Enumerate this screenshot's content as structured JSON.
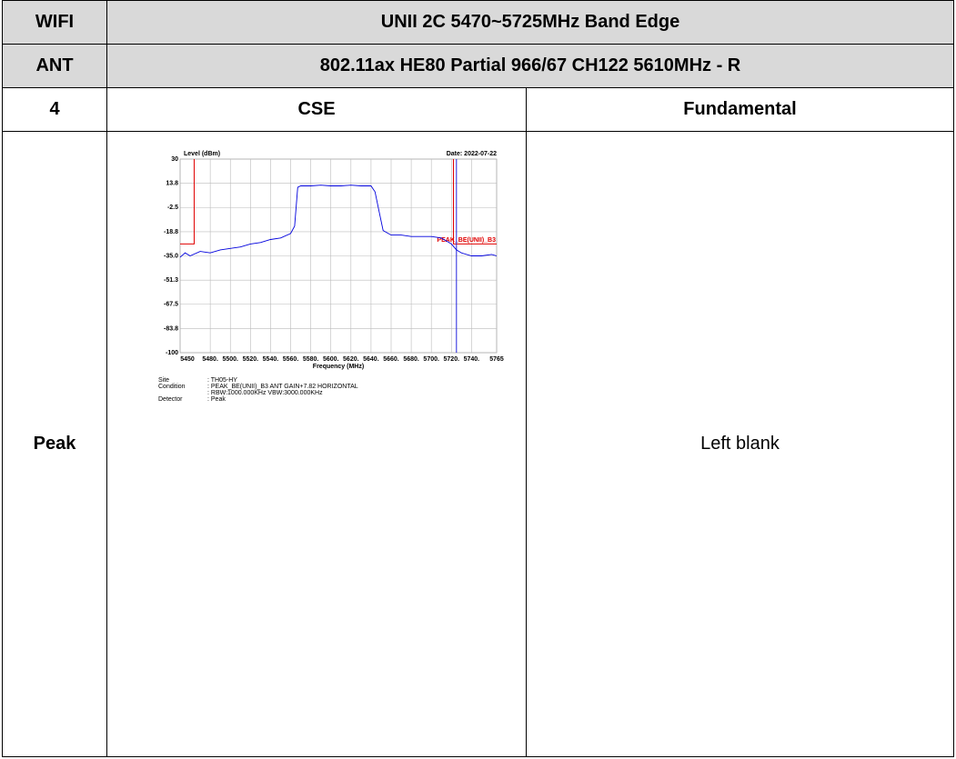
{
  "table": {
    "rows": [
      [
        "WIFI",
        "UNII 2C 5470~5725MHz Band Edge"
      ],
      [
        "ANT",
        "802.11ax HE80 Partial 966/67 CH122 5610MHz - R"
      ],
      [
        "4",
        "CSE",
        "Fundamental"
      ],
      [
        "Peak",
        "Left blank"
      ]
    ]
  },
  "chart_data": {
    "type": "line",
    "y_label": "Level (dBm)",
    "date": "Date: 2022-07-22",
    "x_label": "Frequency (MHz)",
    "x": [
      5450,
      5455,
      5460,
      5470,
      5480,
      5490,
      5500,
      5510,
      5520,
      5530,
      5540,
      5550,
      5560,
      5564,
      5567,
      5570,
      5580,
      5590,
      5600,
      5610,
      5620,
      5630,
      5640,
      5644,
      5648,
      5652,
      5660,
      5670,
      5680,
      5690,
      5700,
      5710,
      5715,
      5720,
      5725,
      5730,
      5740,
      5750,
      5760,
      5765
    ],
    "values": [
      -36,
      -33,
      -35,
      -32,
      -33,
      -31,
      -30,
      -29,
      -27,
      -26,
      -24,
      -23,
      -20,
      -15,
      11,
      12,
      12,
      12.5,
      12,
      12,
      12.5,
      12,
      12,
      8,
      -5,
      -18,
      -21,
      -21,
      -22,
      -22,
      -22,
      -23,
      -25,
      -27,
      -31,
      -33,
      -35,
      -35,
      -34,
      -35
    ],
    "color": "#0000dd",
    "xlim": [
      5450,
      5765
    ],
    "ylim": [
      -100,
      30
    ],
    "xticks": [
      5450,
      {
        "value": 5480,
        "label": "5480."
      },
      {
        "value": 5500,
        "label": "5500."
      },
      {
        "value": 5520,
        "label": "5520."
      },
      {
        "value": 5540,
        "label": "5540."
      },
      {
        "value": 5560,
        "label": "5560."
      },
      {
        "value": 5580,
        "label": "5580."
      },
      {
        "value": 5600,
        "label": "5600."
      },
      {
        "value": 5620,
        "label": "5620."
      },
      {
        "value": 5640,
        "label": "5640."
      },
      {
        "value": 5660,
        "label": "5660."
      },
      {
        "value": 5680,
        "label": "5680."
      },
      {
        "value": 5700,
        "label": "5700."
      },
      {
        "value": 5720,
        "label": "5720."
      },
      {
        "value": 5740,
        "label": "5740."
      },
      5765
    ],
    "yticks": [
      30,
      13.8,
      -2.5,
      -18.8,
      {
        "value": -35,
        "label": "-35.0"
      },
      -51.3,
      -67.5,
      -83.8,
      -100
    ],
    "grid": true,
    "limit": {
      "label": "PEAK_BE(UNII)_B3",
      "value": -27,
      "edges": [
        5464,
        5722
      ],
      "color": "#e00000"
    },
    "marker_x": 5725,
    "marker_color": "#2222dd",
    "info": [
      [
        "Site",
        ": TH05-HY"
      ],
      [
        "Condition",
        ": PEAK_BE(UNII)_B3 ANT GAIN+7.82 HORIZONTAL"
      ],
      [
        "",
        ": RBW:1000.000KHz VBW:3000.000KHz"
      ],
      [
        "Detector",
        ": Peak"
      ]
    ]
  }
}
